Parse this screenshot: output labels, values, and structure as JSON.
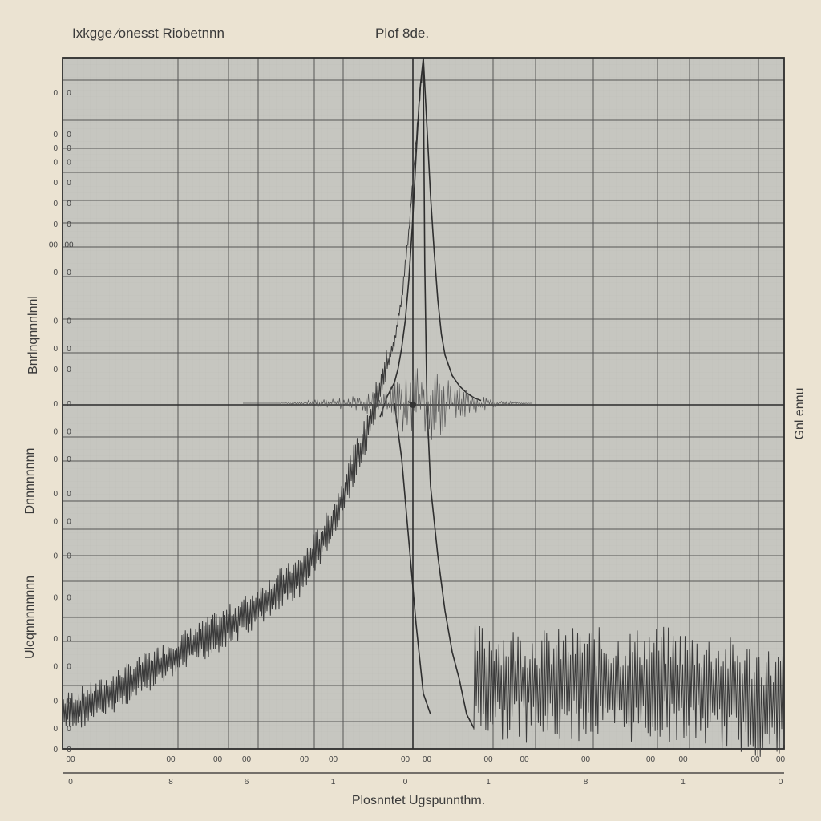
{
  "chart_data": {
    "type": "line",
    "title": "Ixkgge ⁄onesst Riobetnnn",
    "subtitle": "Plof 8de.",
    "xlabel": "Plosnntet Ugspunnthm.",
    "ylabel_segments": [
      "Bnrlnqnnnlnnl",
      "Dnnnnnnnn",
      "Uleqnnnnnnnn"
    ],
    "ylabel_right": "Gnl ennu",
    "xlim": [
      0,
      100
    ],
    "ylim": [
      -50,
      50
    ],
    "grid": true,
    "y_tick_labels": [
      {
        "y": 45,
        "text": "0"
      },
      {
        "y": 39,
        "text": "0"
      },
      {
        "y": 37,
        "text": "0"
      },
      {
        "y": 35,
        "text": "0"
      },
      {
        "y": 32,
        "text": "0"
      },
      {
        "y": 29,
        "text": "0"
      },
      {
        "y": 26,
        "text": "0"
      },
      {
        "y": 23,
        "text": "00"
      },
      {
        "y": 19,
        "text": "0"
      },
      {
        "y": 12,
        "text": "0"
      },
      {
        "y": 8,
        "text": "0"
      },
      {
        "y": 5,
        "text": "0"
      },
      {
        "y": 0,
        "text": "0"
      },
      {
        "y": -4,
        "text": "0"
      },
      {
        "y": -8,
        "text": "0"
      },
      {
        "y": -13,
        "text": "0"
      },
      {
        "y": -17,
        "text": "0"
      },
      {
        "y": -22,
        "text": "0"
      },
      {
        "y": -28,
        "text": "0"
      },
      {
        "y": -34,
        "text": "0"
      },
      {
        "y": -38,
        "text": "0"
      },
      {
        "y": -43,
        "text": "0"
      },
      {
        "y": -47,
        "text": "0"
      },
      {
        "y": -50,
        "text": "0"
      }
    ],
    "x_tick_labels_top": [
      {
        "x": 0,
        "text": "00"
      },
      {
        "x": 15,
        "text": "00"
      },
      {
        "x": 21.5,
        "text": "00"
      },
      {
        "x": 25.5,
        "text": "00"
      },
      {
        "x": 33.5,
        "text": "00"
      },
      {
        "x": 37.5,
        "text": "00"
      },
      {
        "x": 47.5,
        "text": "00"
      },
      {
        "x": 50.5,
        "text": "00"
      },
      {
        "x": 59,
        "text": "00"
      },
      {
        "x": 64,
        "text": "00"
      },
      {
        "x": 72.5,
        "text": "00"
      },
      {
        "x": 81.5,
        "text": "00"
      },
      {
        "x": 86,
        "text": "00"
      },
      {
        "x": 96,
        "text": "00"
      },
      {
        "x": 99.5,
        "text": "00"
      }
    ],
    "x_tick_labels_bottom": [
      {
        "x": 0,
        "text": "0"
      },
      {
        "x": 15,
        "text": "8"
      },
      {
        "x": 25.5,
        "text": "6"
      },
      {
        "x": 37.5,
        "text": "1"
      },
      {
        "x": 47.5,
        "text": "0"
      },
      {
        "x": 59,
        "text": "1"
      },
      {
        "x": 72.5,
        "text": "8"
      },
      {
        "x": 86,
        "text": "1"
      },
      {
        "x": 99.5,
        "text": "0"
      }
    ],
    "series": [
      {
        "style": "noisy-rise",
        "x": [
          0,
          5,
          10,
          15,
          20,
          25,
          30,
          33,
          36,
          38,
          40,
          42,
          44,
          46,
          47,
          48,
          49,
          50
        ],
        "y": [
          -45,
          -43,
          -40,
          -37,
          -34,
          -31,
          -27,
          -25,
          -20,
          -16,
          -10,
          -5,
          2,
          9,
          15,
          25,
          38,
          50
        ]
      },
      {
        "style": "line",
        "x": [
          44,
          45,
          46,
          46.5,
          47,
          47.5,
          48,
          48.5,
          49,
          49.5,
          50
        ],
        "y": [
          -2,
          1,
          3,
          5,
          8,
          12,
          18,
          26,
          36,
          45,
          50
        ]
      },
      {
        "style": "line",
        "x": [
          50,
          50.5,
          51,
          51.5,
          52,
          52.5,
          53,
          54,
          55,
          56,
          57,
          58
        ],
        "y": [
          50,
          40,
          30,
          22,
          15,
          10,
          7,
          4,
          2.5,
          1.5,
          0.8,
          0.4
        ]
      },
      {
        "style": "line",
        "x": [
          50,
          50.2,
          50.5,
          51,
          52,
          53,
          54,
          55,
          56,
          57
        ],
        "y": [
          48,
          20,
          0,
          -12,
          -22,
          -30,
          -36,
          -40,
          -45,
          -47
        ]
      },
      {
        "style": "line",
        "x": [
          46,
          47,
          48,
          49,
          50,
          51
        ],
        "y": [
          0,
          -8,
          -20,
          -32,
          -42,
          -45
        ]
      },
      {
        "style": "noisy-flat",
        "x": [
          57,
          62,
          67,
          72,
          77,
          82,
          87,
          92,
          96,
          100
        ],
        "y": [
          -40,
          -40.5,
          -41,
          -40.5,
          -41,
          -40.5,
          -41,
          -42,
          -43,
          -44
        ]
      },
      {
        "style": "noise-band",
        "x": [
          25,
          30,
          35,
          40,
          44,
          46,
          48,
          50,
          52,
          54,
          56,
          60,
          65
        ],
        "y": [
          0,
          0,
          0.5,
          1,
          2,
          3,
          5,
          6,
          5,
          3,
          2,
          0.5,
          0
        ]
      }
    ]
  }
}
